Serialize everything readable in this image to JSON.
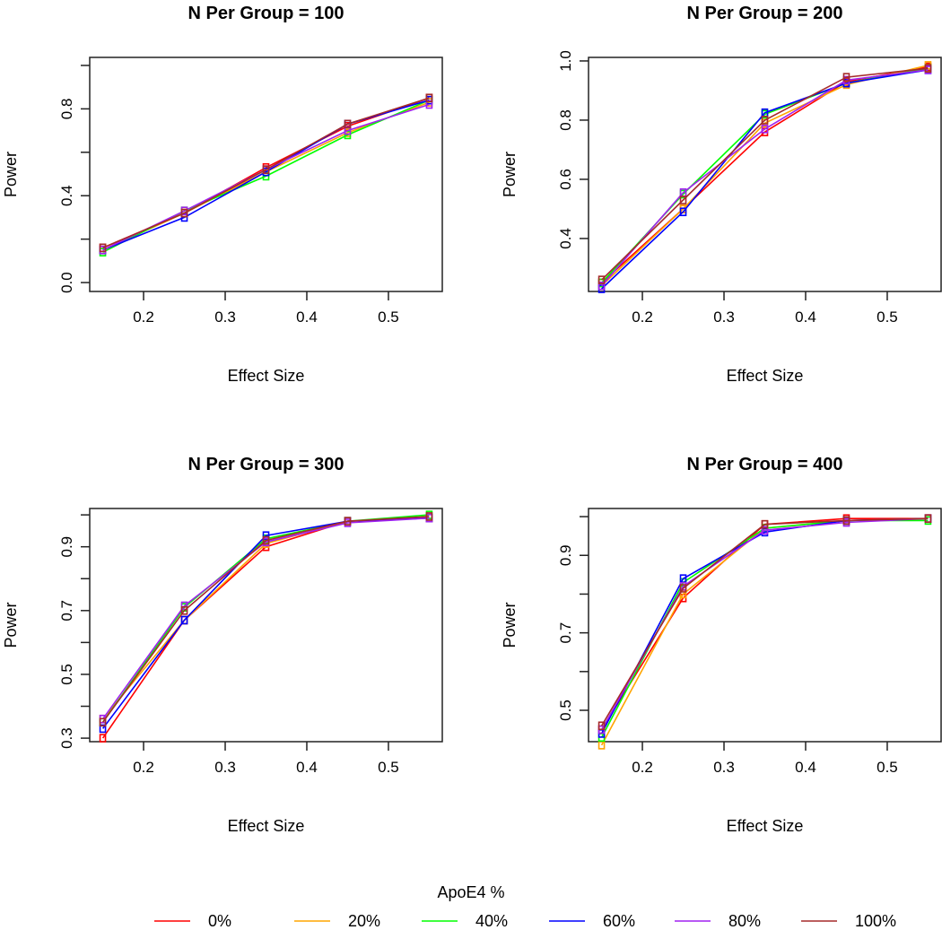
{
  "chart_data": [
    {
      "type": "line",
      "title": "N Per Group = 100",
      "xlabel": "Effect Size",
      "ylabel": "Power",
      "x": [
        0.15,
        0.25,
        0.35,
        0.45,
        0.55
      ],
      "xlim": [
        0.134,
        0.566
      ],
      "ylim": [
        -0.041,
        1.037
      ],
      "xticks": [
        0.2,
        0.3,
        0.4,
        0.5
      ],
      "xtick_labels": [
        "0.2",
        "0.3",
        "0.4",
        "0.5"
      ],
      "yticks": [
        0.0,
        0.2,
        0.4,
        0.6,
        0.8,
        1.0
      ],
      "ytick_labels": [
        "0.0",
        "",
        "0.4",
        "",
        "0.8",
        ""
      ],
      "series": [
        {
          "name": "0%",
          "values": [
            0.16,
            0.32,
            0.53,
            0.72,
            0.85
          ]
        },
        {
          "name": "20%",
          "values": [
            0.15,
            0.32,
            0.51,
            0.69,
            0.83
          ]
        },
        {
          "name": "40%",
          "values": [
            0.14,
            0.33,
            0.49,
            0.68,
            0.84
          ]
        },
        {
          "name": "60%",
          "values": [
            0.15,
            0.3,
            0.51,
            0.73,
            0.84
          ]
        },
        {
          "name": "80%",
          "values": [
            0.15,
            0.33,
            0.52,
            0.7,
            0.82
          ]
        },
        {
          "name": "100%",
          "values": [
            0.16,
            0.32,
            0.52,
            0.73,
            0.85
          ]
        }
      ]
    },
    {
      "type": "line",
      "title": "N Per Group = 200",
      "xlabel": "Effect Size",
      "ylabel": "Power",
      "x": [
        0.15,
        0.25,
        0.35,
        0.45,
        0.55
      ],
      "xlim": [
        0.134,
        0.566
      ],
      "ylim": [
        0.221,
        1.012
      ],
      "xticks": [
        0.2,
        0.3,
        0.4,
        0.5
      ],
      "xtick_labels": [
        "0.2",
        "0.3",
        "0.4",
        "0.5"
      ],
      "yticks": [
        0.4,
        0.6,
        0.8,
        1.0
      ],
      "ytick_labels": [
        "0.4",
        "0.6",
        "0.8",
        "1.0"
      ],
      "series": [
        {
          "name": "0%",
          "values": [
            0.25,
            0.5,
            0.76,
            0.93,
            0.98
          ]
        },
        {
          "name": "20%",
          "values": [
            0.24,
            0.5,
            0.79,
            0.92,
            0.985
          ]
        },
        {
          "name": "40%",
          "values": [
            0.25,
            0.55,
            0.82,
            0.925,
            0.975
          ]
        },
        {
          "name": "60%",
          "values": [
            0.23,
            0.49,
            0.825,
            0.925,
            0.97
          ]
        },
        {
          "name": "80%",
          "values": [
            0.24,
            0.555,
            0.77,
            0.935,
            0.97
          ]
        },
        {
          "name": "100%",
          "values": [
            0.26,
            0.53,
            0.8,
            0.945,
            0.975
          ]
        }
      ]
    },
    {
      "type": "line",
      "title": "N Per Group = 300",
      "xlabel": "Effect Size",
      "ylabel": "Power",
      "x": [
        0.15,
        0.25,
        0.35,
        0.45,
        0.55
      ],
      "xlim": [
        0.134,
        0.566
      ],
      "ylim": [
        0.289,
        1.02
      ],
      "xticks": [
        0.2,
        0.3,
        0.4,
        0.5
      ],
      "xtick_labels": [
        "0.2",
        "0.3",
        "0.4",
        "0.5"
      ],
      "yticks": [
        0.3,
        0.4,
        0.5,
        0.6,
        0.7,
        0.8,
        0.9,
        1.0
      ],
      "ytick_labels": [
        "0.3",
        "",
        "0.5",
        "",
        "0.7",
        "",
        "0.9",
        ""
      ],
      "series": [
        {
          "name": "0%",
          "values": [
            0.3,
            0.67,
            0.9,
            0.98,
            0.99
          ]
        },
        {
          "name": "20%",
          "values": [
            0.36,
            0.67,
            0.91,
            0.98,
            0.99
          ]
        },
        {
          "name": "40%",
          "values": [
            0.35,
            0.71,
            0.925,
            0.98,
            1.0
          ]
        },
        {
          "name": "60%",
          "values": [
            0.33,
            0.67,
            0.935,
            0.98,
            0.99
          ]
        },
        {
          "name": "80%",
          "values": [
            0.36,
            0.715,
            0.915,
            0.975,
            0.99
          ]
        },
        {
          "name": "100%",
          "values": [
            0.35,
            0.7,
            0.92,
            0.98,
            0.995
          ]
        }
      ]
    },
    {
      "type": "line",
      "title": "N Per Group = 400",
      "xlabel": "Effect Size",
      "ylabel": "Power",
      "x": [
        0.15,
        0.25,
        0.35,
        0.45,
        0.55
      ],
      "xlim": [
        0.134,
        0.566
      ],
      "ylim": [
        0.419,
        1.021
      ],
      "xticks": [
        0.2,
        0.3,
        0.4,
        0.5
      ],
      "xtick_labels": [
        "0.2",
        "0.3",
        "0.4",
        "0.5"
      ],
      "yticks": [
        0.5,
        0.6,
        0.7,
        0.8,
        0.9,
        1.0
      ],
      "ytick_labels": [
        "0.5",
        "",
        "0.7",
        "",
        "0.9",
        ""
      ],
      "series": [
        {
          "name": "0%",
          "values": [
            0.45,
            0.79,
            0.98,
            0.995,
            0.995
          ]
        },
        {
          "name": "20%",
          "values": [
            0.41,
            0.8,
            0.97,
            0.99,
            0.995
          ]
        },
        {
          "name": "40%",
          "values": [
            0.43,
            0.83,
            0.97,
            0.99,
            0.99
          ]
        },
        {
          "name": "60%",
          "values": [
            0.44,
            0.84,
            0.96,
            0.99,
            0.995
          ]
        },
        {
          "name": "80%",
          "values": [
            0.45,
            0.82,
            0.965,
            0.985,
            0.995
          ]
        },
        {
          "name": "100%",
          "values": [
            0.46,
            0.815,
            0.98,
            0.99,
            0.995
          ]
        }
      ]
    }
  ],
  "legend": {
    "title": "ApoE4 %",
    "placement": "bottom",
    "entries": [
      "0%",
      "20%",
      "40%",
      "60%",
      "80%",
      "100%"
    ],
    "colors": [
      "#FF0000",
      "#FFA500",
      "#00FF00",
      "#0000FF",
      "#A020F0",
      "#A52A2A"
    ]
  }
}
